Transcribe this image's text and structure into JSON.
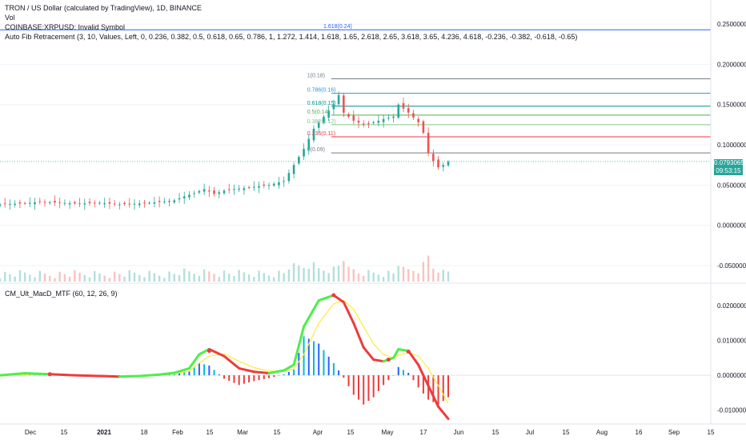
{
  "legend": {
    "title": "TRON / US Dollar (calculated by TradingView), 1D, BINANCE",
    "vol": "Vol",
    "invalid": "COINBASE:XRPUSD: Invalid Symbol",
    "fib": "Auto Fib Retracement (3, 10, Values, Left, 0, 0.236, 0.382, 0.5, 0.618, 0.65, 0.786, 1, 1.272, 1.414, 1.618, 1.65, 2.618, 2.65, 3.618, 3.65, 4.236, 4.618, -0.236, -0.382, -0.618, -0.65)",
    "macd": "CM_Ult_MacD_MTF (60, 12, 26, 9)"
  },
  "price_tag": {
    "value": "0.07930651",
    "countdown": "09:53:15",
    "color": "#26a69a"
  },
  "colors": {
    "up": "#26a69a",
    "down": "#ef5350",
    "macd_up": "#4cef4c",
    "macd_down": "#ef3b3b",
    "signal": "#ffeb3b"
  },
  "chart_data": [
    {
      "type": "candlestick",
      "title": "TRON / US Dollar (calculated by TradingView), 1D, BINANCE",
      "ylim": [
        -0.07,
        0.28
      ],
      "y_ticks": [
        "0.25000000",
        "0.20000000",
        "0.15000000",
        "0.10000000",
        "0.05000000",
        "0.00000000",
        "-0.05000000"
      ],
      "y_tick_values": [
        0.25,
        0.2,
        0.15,
        0.1,
        0.05,
        0.0,
        -0.05
      ],
      "x_ticks": [
        "Dec",
        "15",
        "2021",
        "18",
        "Feb",
        "15",
        "Mar",
        "15",
        "Apr",
        "15",
        "May",
        "17",
        "Jun",
        "15",
        "Jul",
        "15",
        "Aug",
        "16",
        "Sep",
        "15"
      ],
      "close_path": [
        [
          0,
          0.026
        ],
        [
          8,
          0.027
        ],
        [
          16,
          0.029
        ],
        [
          24,
          0.028
        ],
        [
          32,
          0.027
        ],
        [
          40,
          0.028
        ],
        [
          48,
          0.026
        ],
        [
          56,
          0.027
        ],
        [
          64,
          0.029
        ],
        [
          70,
          0.031
        ],
        [
          74,
          0.036
        ],
        [
          78,
          0.04
        ],
        [
          82,
          0.045
        ],
        [
          86,
          0.039
        ],
        [
          90,
          0.043
        ],
        [
          94,
          0.045
        ],
        [
          98,
          0.046
        ],
        [
          102,
          0.048
        ],
        [
          108,
          0.05
        ],
        [
          114,
          0.055
        ],
        [
          118,
          0.075
        ],
        [
          122,
          0.095
        ],
        [
          126,
          0.12
        ],
        [
          130,
          0.135
        ],
        [
          134,
          0.15
        ],
        [
          136,
          0.162
        ],
        [
          138,
          0.14
        ],
        [
          142,
          0.13
        ],
        [
          146,
          0.125
        ],
        [
          150,
          0.128
        ],
        [
          154,
          0.132
        ],
        [
          158,
          0.135
        ],
        [
          160,
          0.15
        ],
        [
          164,
          0.14
        ],
        [
          168,
          0.128
        ],
        [
          170,
          0.115
        ],
        [
          172,
          0.09
        ],
        [
          174,
          0.08
        ],
        [
          176,
          0.072
        ],
        [
          178,
          0.075
        ],
        [
          180,
          0.079
        ]
      ],
      "fib_levels": [
        {
          "label": "1.618(0.24)",
          "value": 0.243,
          "color": "#2962ff"
        },
        {
          "label": "1(0.18)",
          "value": 0.182,
          "color": "#787b86"
        },
        {
          "label": "0.786(0.16)",
          "value": 0.164,
          "color": "#2196f3"
        },
        {
          "label": "0.618(0.15)",
          "value": 0.148,
          "color": "#009688"
        },
        {
          "label": "0.5(0.14)",
          "value": 0.137,
          "color": "#4caf50"
        },
        {
          "label": "0.382(0.12)",
          "value": 0.125,
          "color": "#81c784"
        },
        {
          "label": "0.236(0.11)",
          "value": 0.11,
          "color": "#f23645"
        },
        {
          "label": "0(0.09)",
          "value": 0.09,
          "color": "#787b86"
        }
      ],
      "last_price": 0.0793
    },
    {
      "type": "line",
      "title": "CM_Ult_MacD_MTF (60, 12, 26, 9)",
      "ylim": [
        -0.014,
        0.026
      ],
      "y_ticks": [
        "0.02000000",
        "0.01000000",
        "0.00000000",
        "-0.01000000"
      ],
      "y_tick_values": [
        0.02,
        0.01,
        0.0,
        -0.01
      ],
      "series": [
        {
          "values": [
            [
              0,
              0.0
            ],
            [
              10,
              0.0006
            ],
            [
              20,
              0.0003
            ],
            [
              30,
              0.0
            ],
            [
              40,
              -0.0002
            ],
            [
              48,
              -0.0004
            ],
            [
              56,
              -0.0002
            ],
            [
              64,
              0.0002
            ],
            [
              70,
              0.0007
            ],
            [
              76,
              0.002
            ],
            [
              80,
              0.006
            ],
            [
              84,
              0.0075
            ],
            [
              90,
              0.0055
            ],
            [
              96,
              0.002
            ],
            [
              102,
              0.001
            ],
            [
              108,
              0.0006
            ],
            [
              114,
              0.0014
            ],
            [
              118,
              0.003
            ],
            [
              122,
              0.014
            ],
            [
              128,
              0.0215
            ],
            [
              134,
              0.023
            ],
            [
              138,
              0.021
            ],
            [
              142,
              0.015
            ],
            [
              146,
              0.008
            ],
            [
              150,
              0.0045
            ],
            [
              154,
              0.004
            ],
            [
              158,
              0.005
            ],
            [
              160,
              0.0075
            ],
            [
              164,
              0.007
            ],
            [
              168,
              0.003
            ],
            [
              172,
              -0.003
            ],
            [
              176,
              -0.009
            ],
            [
              180,
              -0.0125
            ]
          ]
        },
        {
          "values": [
            [
              0,
              -0.0002
            ],
            [
              10,
              0.0002
            ],
            [
              20,
              0.0003
            ],
            [
              30,
              0.0001
            ],
            [
              40,
              -0.0001
            ],
            [
              48,
              -0.0003
            ],
            [
              56,
              -0.0002
            ],
            [
              64,
              0.0
            ],
            [
              70,
              0.0004
            ],
            [
              76,
              0.0012
            ],
            [
              80,
              0.0035
            ],
            [
              84,
              0.0055
            ],
            [
              90,
              0.0062
            ],
            [
              96,
              0.004
            ],
            [
              102,
              0.0022
            ],
            [
              108,
              0.0012
            ],
            [
              114,
              0.0012
            ],
            [
              118,
              0.0018
            ],
            [
              122,
              0.006
            ],
            [
              128,
              0.015
            ],
            [
              134,
              0.0205
            ],
            [
              138,
              0.0215
            ],
            [
              142,
              0.019
            ],
            [
              146,
              0.014
            ],
            [
              150,
              0.009
            ],
            [
              154,
              0.006
            ],
            [
              158,
              0.005
            ],
            [
              160,
              0.0058
            ],
            [
              164,
              0.0065
            ],
            [
              168,
              0.0055
            ],
            [
              172,
              0.002
            ],
            [
              176,
              -0.003
            ],
            [
              180,
              -0.008
            ]
          ]
        }
      ]
    }
  ]
}
